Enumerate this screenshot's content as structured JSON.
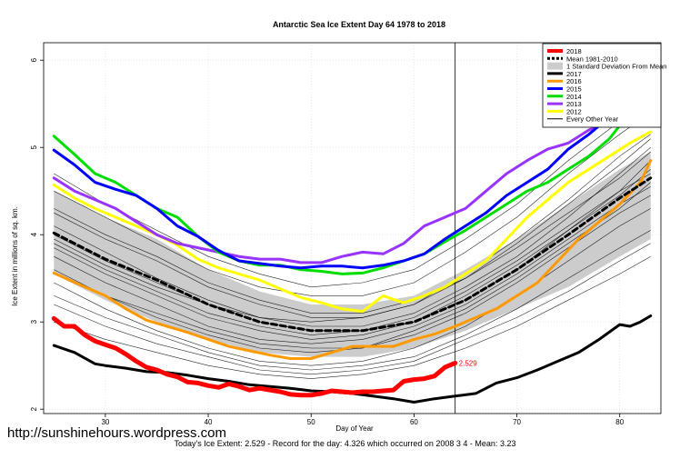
{
  "watermark": "http://sunshinehours.wordpress.com",
  "chart_data": {
    "type": "line",
    "title": "Antarctic Sea Ice Extent Day 64 1978 to 2018",
    "xlabel": "Day of Year",
    "ylabel": "Ice Extent in millions of sq. km.",
    "subtitle": "Today's Ice Extent: 2.529  - Record for the day: 4.326 which occurred on 2008 3 4  - Mean: 3.23",
    "xlim": [
      24,
      84
    ],
    "ylim": [
      1.95,
      6.2
    ],
    "x_ticks": [
      30,
      40,
      50,
      60,
      70,
      80
    ],
    "y_ticks": [
      2,
      3,
      4,
      5,
      6
    ],
    "grid": true,
    "legend_position": "top-right",
    "current_day": 64,
    "current_value_label": "2.529",
    "band": {
      "name": "1 Standard Deviation From Mean",
      "color": "#cccccc",
      "x": [
        25,
        30,
        35,
        40,
        45,
        50,
        55,
        60,
        65,
        70,
        75,
        80,
        83
      ],
      "lower": [
        3.55,
        3.25,
        3.0,
        2.8,
        2.65,
        2.6,
        2.6,
        2.7,
        2.9,
        3.15,
        3.4,
        3.75,
        3.95
      ],
      "upper": [
        4.5,
        4.2,
        3.95,
        3.6,
        3.35,
        3.2,
        3.2,
        3.3,
        3.6,
        3.95,
        4.35,
        4.75,
        4.95
      ]
    },
    "background_lines": {
      "name": "Every Other Year",
      "color": "#000000",
      "lines": [
        {
          "x": [
            25,
            30,
            35,
            40,
            45,
            50,
            55,
            60,
            65,
            70,
            75,
            80,
            83
          ],
          "y": [
            3.9,
            3.6,
            3.35,
            3.1,
            2.95,
            2.85,
            2.9,
            3.05,
            3.35,
            3.7,
            4.1,
            4.5,
            4.7
          ]
        },
        {
          "x": [
            25,
            30,
            35,
            40,
            45,
            50,
            55,
            60,
            65,
            70,
            75,
            80,
            83
          ],
          "y": [
            3.6,
            3.3,
            3.05,
            2.85,
            2.7,
            2.65,
            2.7,
            2.9,
            3.15,
            3.5,
            3.9,
            4.3,
            4.6
          ]
        },
        {
          "x": [
            25,
            30,
            35,
            40,
            45,
            50,
            55,
            60,
            65,
            70,
            75,
            80,
            83
          ],
          "y": [
            4.3,
            4.0,
            3.75,
            3.45,
            3.25,
            3.1,
            3.1,
            3.25,
            3.5,
            3.85,
            4.25,
            4.65,
            4.95
          ]
        },
        {
          "x": [
            25,
            30,
            35,
            40,
            45,
            50,
            55,
            60,
            65,
            70,
            75,
            80,
            83
          ],
          "y": [
            3.3,
            3.05,
            2.85,
            2.65,
            2.5,
            2.45,
            2.5,
            2.6,
            2.85,
            3.15,
            3.5,
            3.85,
            4.05
          ]
        },
        {
          "x": [
            25,
            30,
            35,
            40,
            45,
            50,
            55,
            60,
            65,
            70,
            75,
            80,
            83
          ],
          "y": [
            4.7,
            4.35,
            4.05,
            3.75,
            3.55,
            3.4,
            3.45,
            3.6,
            3.95,
            4.35,
            4.85,
            5.3,
            5.5
          ]
        },
        {
          "x": [
            25,
            30,
            35,
            40,
            45,
            50,
            55,
            60,
            65,
            70,
            75,
            80,
            83
          ],
          "y": [
            3.75,
            3.45,
            3.2,
            2.95,
            2.8,
            2.75,
            2.8,
            2.95,
            3.2,
            3.55,
            3.95,
            4.35,
            4.55
          ]
        },
        {
          "x": [
            25,
            30,
            35,
            40,
            45,
            50,
            55,
            60,
            65,
            70,
            75,
            80,
            83
          ],
          "y": [
            4.1,
            3.8,
            3.5,
            3.25,
            3.05,
            2.95,
            2.95,
            3.1,
            3.4,
            3.75,
            4.2,
            4.7,
            5.0
          ]
        },
        {
          "x": [
            25,
            30,
            35,
            40,
            45,
            50,
            55,
            60,
            65,
            70,
            75,
            80,
            83
          ],
          "y": [
            3.45,
            3.15,
            2.9,
            2.7,
            2.55,
            2.5,
            2.55,
            2.7,
            2.95,
            3.3,
            3.7,
            4.1,
            4.3
          ]
        },
        {
          "x": [
            25,
            30,
            35,
            40,
            45,
            50,
            55,
            60,
            65,
            70,
            75,
            80,
            83
          ],
          "y": [
            4.5,
            4.2,
            3.9,
            3.6,
            3.4,
            3.3,
            3.3,
            3.45,
            3.8,
            4.2,
            4.7,
            5.15,
            5.4
          ]
        },
        {
          "x": [
            25,
            30,
            35,
            40,
            45,
            50,
            55,
            60,
            65,
            70,
            75,
            80,
            83
          ],
          "y": [
            3.2,
            2.95,
            2.75,
            2.6,
            2.45,
            2.4,
            2.45,
            2.55,
            2.8,
            3.05,
            3.35,
            3.7,
            3.9
          ]
        },
        {
          "x": [
            25,
            30,
            35,
            40,
            45,
            50,
            55,
            60,
            65,
            70,
            75,
            80,
            83
          ],
          "y": [
            4.0,
            3.7,
            3.45,
            3.2,
            3.0,
            2.9,
            2.9,
            3.0,
            3.25,
            3.6,
            4.05,
            4.45,
            4.75
          ]
        },
        {
          "x": [
            25,
            30,
            35,
            40,
            45,
            50,
            55,
            60,
            65,
            70,
            75,
            80,
            83
          ],
          "y": [
            3.85,
            3.55,
            3.3,
            3.05,
            2.9,
            2.8,
            2.85,
            3.0,
            3.3,
            3.65,
            4.05,
            4.5,
            4.85
          ]
        },
        {
          "x": [
            25,
            30,
            35,
            40,
            45,
            50,
            55,
            60,
            65,
            70,
            75,
            80,
            83
          ],
          "y": [
            3.0,
            2.8,
            2.65,
            2.5,
            2.4,
            2.35,
            2.4,
            2.5,
            2.7,
            2.95,
            3.25,
            3.55,
            3.75
          ]
        },
        {
          "x": [
            25,
            30,
            35,
            40,
            45,
            50,
            55,
            60,
            65,
            70,
            75,
            80,
            83
          ],
          "y": [
            4.25,
            3.95,
            3.7,
            3.4,
            3.2,
            3.05,
            3.05,
            3.2,
            3.5,
            3.9,
            4.35,
            4.8,
            5.1
          ]
        },
        {
          "x": [
            25,
            30,
            35,
            40,
            45,
            50,
            55,
            60,
            65,
            70,
            75,
            80,
            83
          ],
          "y": [
            3.55,
            3.3,
            3.1,
            2.9,
            2.75,
            2.7,
            2.7,
            2.85,
            3.1,
            3.45,
            3.85,
            4.25,
            4.45
          ]
        },
        {
          "x": [
            25,
            30,
            35,
            40,
            45,
            50,
            55,
            60,
            65,
            70,
            75,
            80,
            83
          ],
          "y": [
            3.95,
            3.65,
            3.4,
            3.2,
            3.05,
            3.0,
            3.05,
            3.2,
            3.55,
            3.95,
            4.4,
            4.9,
            5.15
          ]
        }
      ]
    },
    "series": [
      {
        "name": "2018",
        "color": "#ff0000",
        "width": 5,
        "x": [
          25,
          26,
          27,
          28,
          29,
          30,
          31,
          32,
          33,
          34,
          35,
          36,
          37,
          38,
          39,
          40,
          41,
          42,
          43,
          44,
          45,
          46,
          47,
          48,
          49,
          50,
          51,
          52,
          53,
          54,
          55,
          56,
          57,
          58,
          59,
          60,
          61,
          62,
          63,
          64
        ],
        "y": [
          3.04,
          2.95,
          2.95,
          2.85,
          2.78,
          2.74,
          2.7,
          2.63,
          2.55,
          2.48,
          2.45,
          2.4,
          2.37,
          2.31,
          2.3,
          2.27,
          2.25,
          2.29,
          2.26,
          2.22,
          2.24,
          2.22,
          2.2,
          2.17,
          2.16,
          2.16,
          2.18,
          2.21,
          2.2,
          2.19,
          2.2,
          2.2,
          2.21,
          2.22,
          2.32,
          2.34,
          2.35,
          2.38,
          2.48,
          2.529
        ]
      },
      {
        "name": "Mean 1981-2010",
        "color": "#000000",
        "width": 3,
        "dash": "6,4",
        "x": [
          25,
          30,
          35,
          40,
          45,
          50,
          55,
          60,
          65,
          70,
          75,
          80,
          83
        ],
        "y": [
          4.02,
          3.72,
          3.48,
          3.2,
          3.0,
          2.9,
          2.9,
          3.0,
          3.25,
          3.6,
          4.0,
          4.42,
          4.65
        ]
      },
      {
        "name": "2017",
        "color": "#000000",
        "width": 3,
        "x": [
          25,
          27,
          29,
          30,
          32,
          34,
          36,
          38,
          40,
          42,
          44,
          46,
          48,
          50,
          52,
          54,
          56,
          58,
          60,
          62,
          64,
          66,
          68,
          70,
          72,
          74,
          76,
          78,
          80,
          81,
          82,
          83
        ],
        "y": [
          2.73,
          2.65,
          2.52,
          2.5,
          2.47,
          2.43,
          2.42,
          2.39,
          2.35,
          2.32,
          2.28,
          2.26,
          2.24,
          2.21,
          2.2,
          2.18,
          2.15,
          2.12,
          2.08,
          2.12,
          2.15,
          2.18,
          2.3,
          2.36,
          2.45,
          2.55,
          2.65,
          2.8,
          2.97,
          2.95,
          3.0,
          3.07
        ]
      },
      {
        "name": "2016",
        "color": "#ff9900",
        "width": 3,
        "x": [
          25,
          28,
          30,
          32,
          34,
          36,
          38,
          40,
          42,
          44,
          46,
          48,
          50,
          52,
          54,
          56,
          58,
          60,
          62,
          64,
          66,
          68,
          70,
          72,
          74,
          76,
          78,
          80,
          82,
          83
        ],
        "y": [
          3.56,
          3.4,
          3.3,
          3.15,
          3.02,
          2.95,
          2.88,
          2.8,
          2.72,
          2.67,
          2.62,
          2.58,
          2.58,
          2.65,
          2.72,
          2.72,
          2.72,
          2.8,
          2.86,
          2.95,
          3.05,
          3.15,
          3.3,
          3.45,
          3.7,
          3.95,
          4.15,
          4.35,
          4.6,
          4.85
        ]
      },
      {
        "name": "2015",
        "color": "#0000ff",
        "width": 3,
        "x": [
          25,
          27,
          29,
          31,
          33,
          35,
          37,
          39,
          41,
          43,
          45,
          47,
          49,
          51,
          53,
          55,
          57,
          59,
          61,
          63,
          65,
          67,
          69,
          71,
          73,
          75,
          77,
          79,
          81,
          83
        ],
        "y": [
          4.97,
          4.8,
          4.6,
          4.52,
          4.45,
          4.3,
          4.1,
          3.98,
          3.82,
          3.7,
          3.67,
          3.64,
          3.62,
          3.64,
          3.64,
          3.62,
          3.65,
          3.7,
          3.78,
          3.95,
          4.1,
          4.25,
          4.45,
          4.6,
          4.75,
          4.98,
          5.15,
          5.35,
          5.55,
          5.75
        ]
      },
      {
        "name": "2014",
        "color": "#00dd00",
        "width": 3,
        "x": [
          25,
          27,
          29,
          31,
          33,
          35,
          37,
          39,
          41,
          43,
          45,
          47,
          49,
          51,
          53,
          55,
          57,
          59,
          61,
          63,
          65,
          67,
          69,
          71,
          73,
          75,
          77,
          79,
          81,
          83
        ],
        "y": [
          5.13,
          4.92,
          4.7,
          4.6,
          4.45,
          4.3,
          4.2,
          3.98,
          3.8,
          3.7,
          3.65,
          3.65,
          3.6,
          3.58,
          3.55,
          3.56,
          3.62,
          3.7,
          3.78,
          3.92,
          4.05,
          4.2,
          4.35,
          4.5,
          4.6,
          4.75,
          4.9,
          5.1,
          5.4,
          5.6
        ]
      },
      {
        "name": "2013",
        "color": "#9933ff",
        "width": 3,
        "x": [
          25,
          27,
          29,
          31,
          33,
          35,
          37,
          39,
          41,
          43,
          45,
          47,
          49,
          51,
          53,
          55,
          57,
          59,
          61,
          63,
          65,
          67,
          69,
          71,
          73,
          75,
          77,
          79,
          81,
          83
        ],
        "y": [
          4.65,
          4.5,
          4.4,
          4.3,
          4.15,
          4.0,
          3.9,
          3.85,
          3.8,
          3.75,
          3.72,
          3.72,
          3.68,
          3.68,
          3.75,
          3.8,
          3.78,
          3.9,
          4.1,
          4.2,
          4.3,
          4.5,
          4.7,
          4.85,
          4.98,
          5.05,
          5.2,
          5.3,
          5.45,
          5.55
        ]
      },
      {
        "name": "2012",
        "color": "#ffff00",
        "width": 3,
        "x": [
          25,
          27,
          29,
          31,
          33,
          35,
          37,
          39,
          41,
          43,
          45,
          47,
          49,
          51,
          53,
          55,
          57,
          59,
          61,
          63,
          65,
          67,
          69,
          71,
          73,
          75,
          77,
          79,
          81,
          83
        ],
        "y": [
          4.57,
          4.42,
          4.3,
          4.2,
          4.1,
          4.0,
          3.88,
          3.72,
          3.62,
          3.55,
          3.48,
          3.38,
          3.28,
          3.22,
          3.15,
          3.12,
          3.3,
          3.22,
          3.3,
          3.4,
          3.55,
          3.7,
          3.95,
          4.2,
          4.4,
          4.6,
          4.75,
          4.9,
          5.05,
          5.18
        ]
      }
    ],
    "legend": [
      {
        "label": "2018",
        "color": "#ff0000",
        "kind": "line",
        "width": 4
      },
      {
        "label": "Mean 1981-2010",
        "color": "#000000",
        "kind": "dash",
        "width": 3
      },
      {
        "label": "1 Standard Deviation From Mean",
        "color": "#cccccc",
        "kind": "band",
        "width": 8
      },
      {
        "label": "2017",
        "color": "#000000",
        "kind": "line",
        "width": 3
      },
      {
        "label": "2016",
        "color": "#ff9900",
        "kind": "line",
        "width": 3
      },
      {
        "label": "2015",
        "color": "#0000ff",
        "kind": "line",
        "width": 3
      },
      {
        "label": "2014",
        "color": "#00dd00",
        "kind": "line",
        "width": 3
      },
      {
        "label": "2013",
        "color": "#9933ff",
        "kind": "line",
        "width": 3
      },
      {
        "label": "2012",
        "color": "#ffff00",
        "kind": "line",
        "width": 3
      },
      {
        "label": "Every Other Year",
        "color": "#000000",
        "kind": "line",
        "width": 1
      }
    ]
  }
}
